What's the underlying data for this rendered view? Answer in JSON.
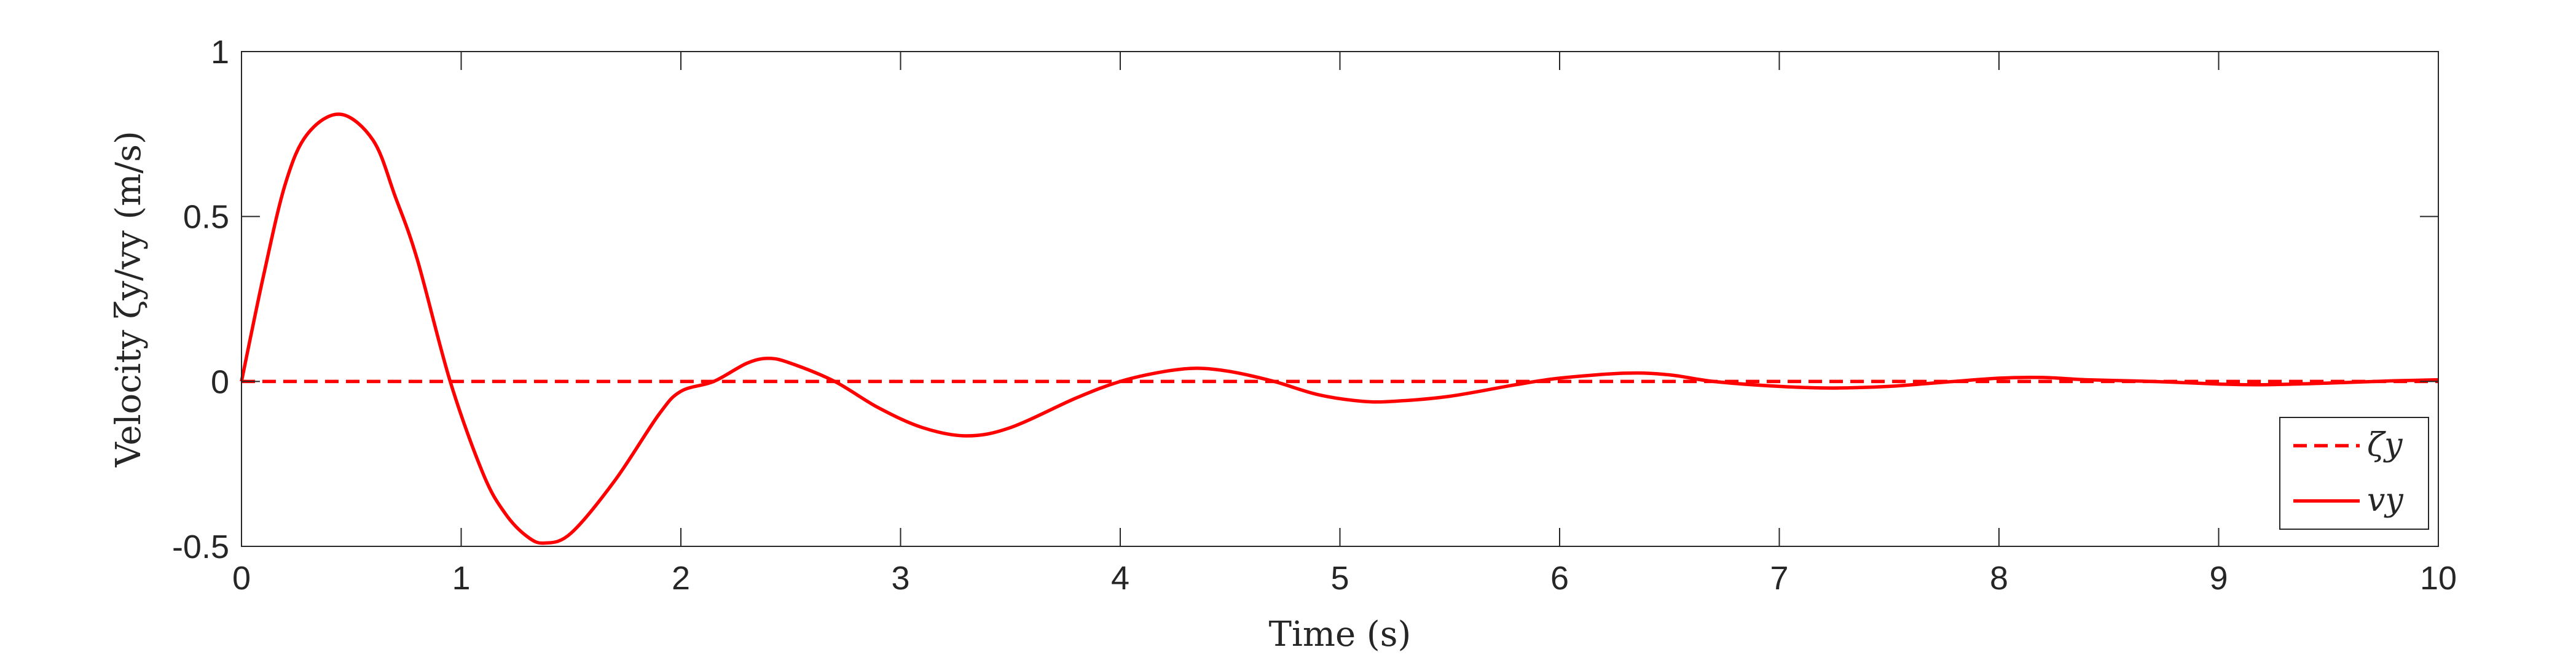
{
  "chart_data": {
    "type": "line",
    "xlabel": "Time (s)",
    "ylabel": "Velocity ζy/vy (m/s)",
    "xlim": [
      0,
      10
    ],
    "ylim": [
      -0.5,
      1
    ],
    "xticks": [
      "0",
      "1",
      "2",
      "3",
      "4",
      "5",
      "6",
      "7",
      "8",
      "9",
      "10"
    ],
    "yticks": [
      "-0.5",
      "0",
      "0.5",
      "1"
    ],
    "grid": false,
    "legend_position": "bottom-right",
    "colors": {
      "series": "#ff0000",
      "axes": "#262626"
    },
    "series": [
      {
        "name": "ζy",
        "style": "dashed",
        "x": [
          0,
          10
        ],
        "y": [
          0,
          0
        ]
      },
      {
        "name": "vy",
        "style": "solid",
        "x": [
          0,
          0.1,
          0.2,
          0.3,
          0.45,
          0.6,
          0.7,
          0.8,
          0.95,
          1.1,
          1.2,
          1.3,
          1.38,
          1.5,
          1.7,
          1.9,
          2.0,
          2.15,
          2.3,
          2.4,
          2.5,
          2.7,
          2.9,
          3.1,
          3.3,
          3.5,
          3.8,
          4.0,
          4.2,
          4.35,
          4.5,
          4.7,
          4.9,
          5.1,
          5.25,
          5.5,
          5.8,
          6.0,
          6.3,
          6.5,
          6.7,
          7.0,
          7.25,
          7.5,
          7.7,
          8.0,
          8.2,
          8.4,
          8.7,
          9.0,
          9.2,
          9.5,
          9.8,
          10.0
        ],
        "y": [
          0,
          0.32,
          0.6,
          0.75,
          0.81,
          0.73,
          0.56,
          0.37,
          0.0,
          -0.28,
          -0.4,
          -0.47,
          -0.49,
          -0.46,
          -0.3,
          -0.1,
          -0.03,
          0.0,
          0.055,
          0.07,
          0.055,
          0.0,
          -0.08,
          -0.14,
          -0.165,
          -0.14,
          -0.05,
          0.0,
          0.03,
          0.04,
          0.03,
          0.0,
          -0.04,
          -0.06,
          -0.06,
          -0.045,
          -0.01,
          0.01,
          0.025,
          0.02,
          0.0,
          -0.015,
          -0.02,
          -0.015,
          -0.005,
          0.01,
          0.012,
          0.005,
          0.0,
          -0.008,
          -0.01,
          -0.005,
          0.002,
          0.005
        ]
      }
    ]
  }
}
